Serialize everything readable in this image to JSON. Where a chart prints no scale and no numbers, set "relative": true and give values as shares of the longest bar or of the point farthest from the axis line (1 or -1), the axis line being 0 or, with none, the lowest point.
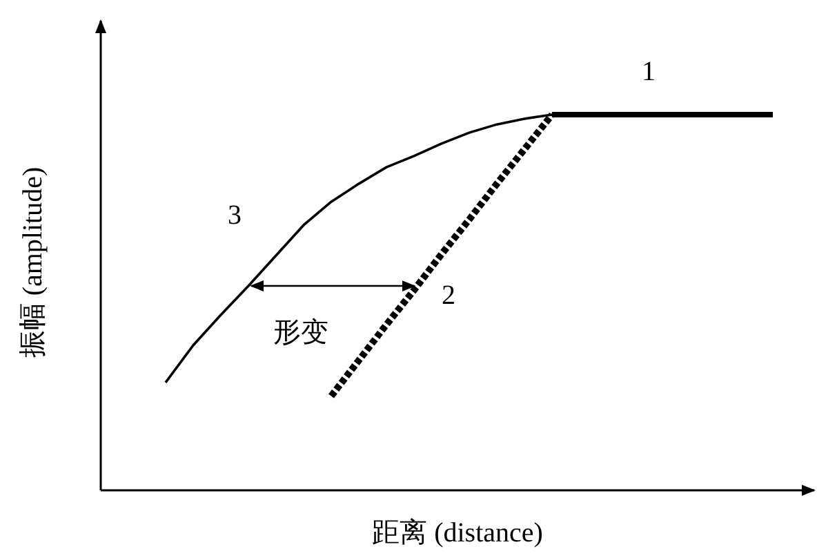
{
  "chart_data": {
    "type": "line",
    "relative": true,
    "xlabel": "距离 (distance)",
    "ylabel": "振幅 (amplitude)",
    "categories": [
      null,
      null,
      null,
      null,
      null,
      null,
      null,
      null,
      null,
      null,
      null,
      null,
      null,
      null,
      null,
      null,
      null,
      null,
      null,
      null,
      null,
      null,
      null
    ],
    "series": [
      {
        "name": "1",
        "color": "#000000",
        "line_style": "solid",
        "values": [
          null,
          null,
          null,
          null,
          null,
          null,
          null,
          null,
          null,
          null,
          null,
          null,
          null,
          null,
          1,
          1,
          1,
          1,
          1,
          1,
          1,
          1,
          1
        ]
      },
      {
        "name": "2",
        "color": "#000000",
        "line_style": "dotted",
        "values": [
          null,
          null,
          null,
          null,
          null,
          null,
          0.251,
          0.346,
          0.441,
          0.533,
          0.629,
          0.721,
          0.816,
          0.908,
          1,
          null,
          null,
          null,
          null,
          null,
          null,
          null,
          null
        ]
      },
      {
        "name": "3",
        "color": "#000000",
        "line_style": "solid",
        "values": [
          0.287,
          0.386,
          0.467,
          0.544,
          0.625,
          0.706,
          0.768,
          0.816,
          0.86,
          0.89,
          0.923,
          0.952,
          0.974,
          0.989,
          1,
          null,
          null,
          null,
          null,
          null,
          null,
          null,
          null
        ]
      }
    ],
    "annotations": [
      "形变"
    ]
  }
}
